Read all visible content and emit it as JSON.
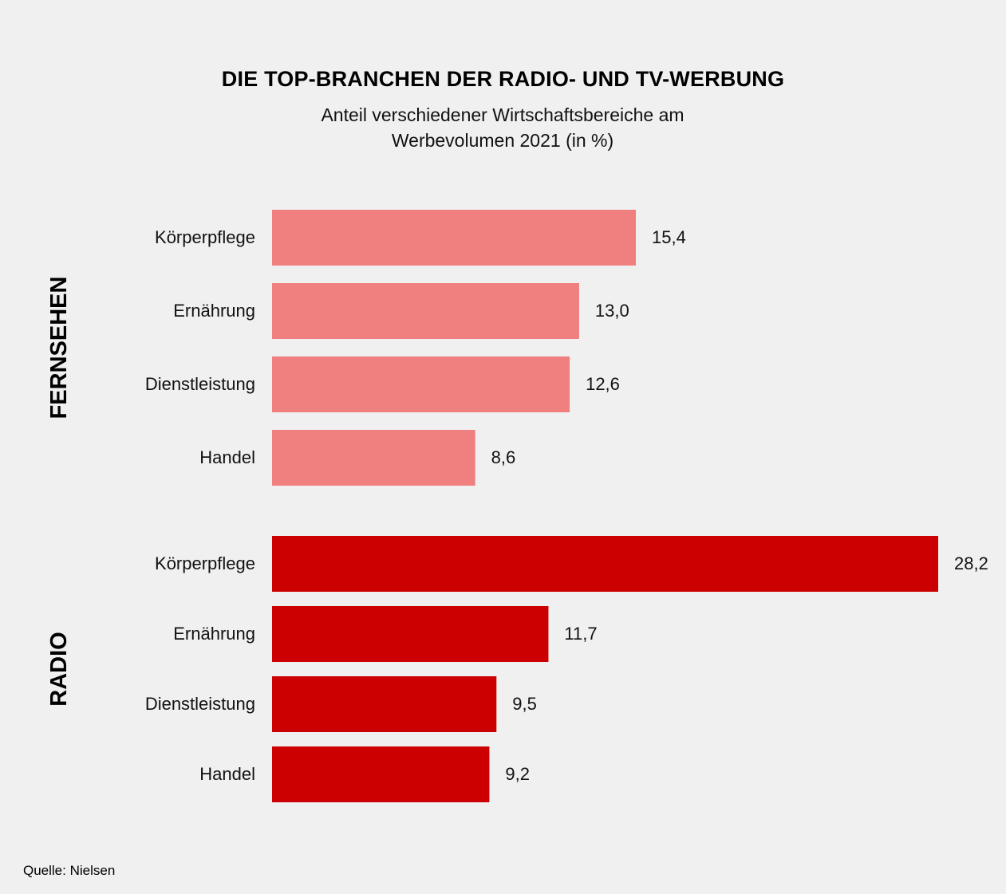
{
  "title": "DIE TOP-BRANCHEN DER RADIO- UND TV-WERBUNG",
  "subtitle": "Anteil verschiedener Wirtschaftsbereiche am Werbevolumen 2021 (in %)",
  "source": "Quelle: Nielsen",
  "colors": {
    "fernsehen": "#f08080",
    "radio": "#cc0000"
  },
  "chart_data": {
    "type": "bar",
    "orientation": "horizontal",
    "categories": [
      "Körperpflege",
      "Ernährung",
      "Dienstleistung",
      "Handel"
    ],
    "series": [
      {
        "name": "FERNSEHEN",
        "values": [
          15.4,
          13.0,
          12.6,
          8.6
        ],
        "labels": [
          "15,4",
          "13,0",
          "12,6",
          "8,6"
        ]
      },
      {
        "name": "RADIO",
        "values": [
          28.2,
          11.7,
          9.5,
          9.2
        ],
        "labels": [
          "28,2",
          "11,7",
          "9,5",
          "9,2"
        ]
      }
    ],
    "xlim": [
      0,
      28.2
    ],
    "grid": false,
    "legend": "none"
  }
}
